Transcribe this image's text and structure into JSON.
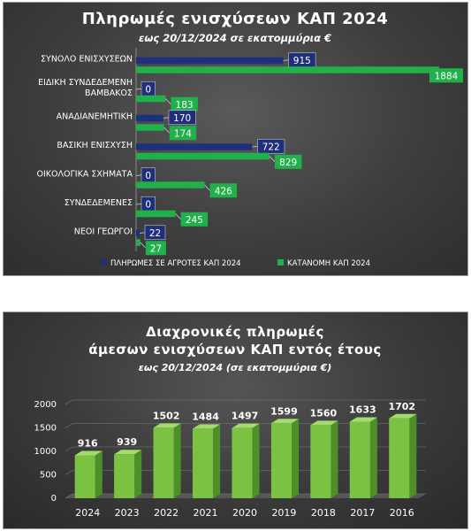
{
  "chart_data": [
    {
      "type": "bar",
      "orientation": "horizontal",
      "title": "Πληρωμές ενισχύσεων ΚΑΠ 2024",
      "subtitle": "εως 20/12/2024 σε εκατομμύρια €",
      "categories": [
        "ΣΥΝΟΛΟ ΕΝΙΣΧΥΣΕΩΝ",
        "ΕΙΔΙΚΗ ΣΥΝΔΕΔΕΜΕΝΗ ΒΑΜΒΑΚΟΣ",
        "ΑΝΑΔΙΑΝΕΜΗΤΙΚΗ",
        "ΒΑΣΙΚΗ ΕΝΙΣΧΥΣΗ",
        "ΟΙΚΟΛΟΓΙΚΑ ΣΧΗΜΑΤΑ",
        "ΣΥΝΔΕΔΕΜΕΝΕΣ",
        "ΝΕΟΙ ΓΕΩΡΓΟΙ"
      ],
      "category_lines": [
        [
          "ΣΥΝΟΛΟ ΕΝΙΣΧΥΣΕΩΝ"
        ],
        [
          "ΕΙΔΙΚΗ ΣΥΝΔΕΔΕΜΕΝΗ",
          "ΒΑΜΒΑΚΟΣ"
        ],
        [
          "ΑΝΑΔΙΑΝΕΜΗΤΙΚΗ"
        ],
        [
          "ΒΑΣΙΚΗ ΕΝΙΣΧΥΣΗ"
        ],
        [
          "ΟΙΚΟΛΟΓΙΚΑ ΣΧΗΜΑΤΑ"
        ],
        [
          "ΣΥΝΔΕΔΕΜΕΝΕΣ"
        ],
        [
          "ΝΕΟΙ ΓΕΩΡΓΟΙ"
        ]
      ],
      "series": [
        {
          "name": "ΠΛΗΡΩΜΕΣ  ΣΕ ΑΓΡΟΤΕΣ ΚΑΠ 2024",
          "color": "#1f2f7a",
          "values": [
            915,
            0,
            170,
            722,
            0,
            0,
            22
          ]
        },
        {
          "name": "ΚΑΤΑΝΟΜΗ ΚΑΠ 2024",
          "color": "#21b14b",
          "values": [
            1884,
            183,
            174,
            829,
            426,
            245,
            27
          ]
        }
      ],
      "xlim": [
        0,
        1884
      ],
      "grid": false,
      "legend": "bottom"
    },
    {
      "type": "bar",
      "style": "3d",
      "title_lines": [
        "Διαχρονικές πληρωμές",
        "άμεσων ενισχύσεων ΚΑΠ εντός έτους"
      ],
      "subtitle": "εως 20/12/2024 (σε εκατομμύρια €)",
      "categories": [
        "2024",
        "2023",
        "2022",
        "2021",
        "2020",
        "2019",
        "2018",
        "2017",
        "2016"
      ],
      "values": [
        916,
        939,
        1502,
        1484,
        1497,
        1599,
        1560,
        1633,
        1702
      ],
      "ylim": [
        0,
        2000
      ],
      "yticks": [
        "0",
        "500",
        "1000",
        "1500",
        "2000"
      ],
      "color": "#7cc242",
      "grid": true
    }
  ]
}
